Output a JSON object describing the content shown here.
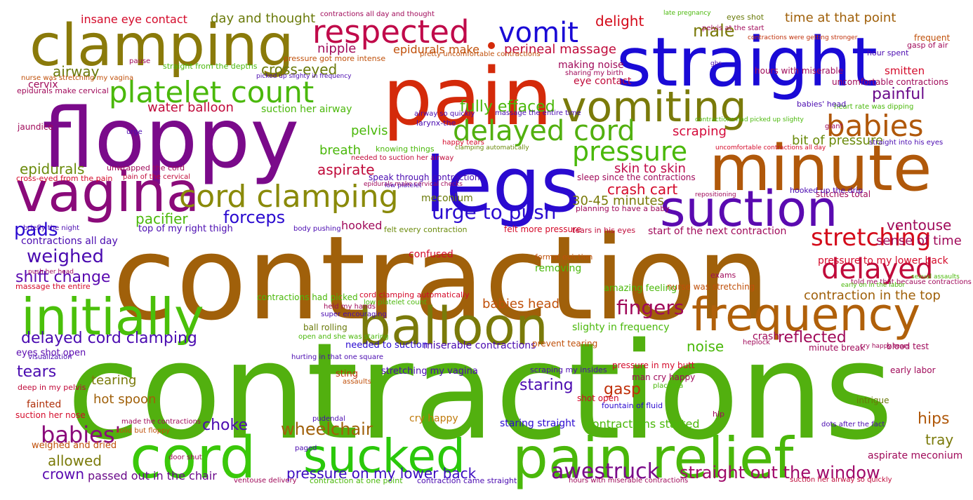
{
  "word_cloud": {
    "words": [
      {
        "text": "contractions",
        "color": "#52b00f"
      },
      {
        "text": "contraction",
        "color": "#a0600a"
      },
      {
        "text": "floppy",
        "color": "#7a0a8a"
      },
      {
        "text": "pain",
        "color": "#d42a0a"
      },
      {
        "text": "straight",
        "color": "#1a0ad6"
      },
      {
        "text": "clamping",
        "color": "#8a7a0a"
      },
      {
        "text": "legs",
        "color": "#2a0ad0"
      },
      {
        "text": "minute",
        "color": "#b0580a"
      },
      {
        "text": "pain relief",
        "color": "#4ab80a"
      },
      {
        "text": "cord",
        "color": "#3ac80a"
      },
      {
        "text": "balloon",
        "color": "#7a7a0a"
      },
      {
        "text": "initially",
        "color": "#4ac00a"
      },
      {
        "text": "vagina",
        "color": "#8a0a7a"
      },
      {
        "text": "suction",
        "color": "#5a0ab0"
      },
      {
        "text": "sucked",
        "color": "#2ac80a"
      },
      {
        "text": "frequency",
        "color": "#b0600a"
      },
      {
        "text": "vomiting",
        "color": "#7a7a0a"
      },
      {
        "text": "respected",
        "color": "#c00a4a"
      },
      {
        "text": "cord clamping",
        "color": "#8a8a0a"
      },
      {
        "text": "platelet count",
        "color": "#4ab80a"
      },
      {
        "text": "delayed cord",
        "color": "#52b00f"
      },
      {
        "text": "babies",
        "color": "#b0580a"
      },
      {
        "text": "pressure",
        "color": "#4ab80a"
      },
      {
        "text": "vomit",
        "color": "#1a0ad6"
      },
      {
        "text": "delayed",
        "color": "#c00a3a"
      },
      {
        "text": "stretching",
        "color": "#d40a1a"
      },
      {
        "text": "urge to push",
        "color": "#2a0ad0"
      },
      {
        "text": "fingers",
        "color": "#a00a5a"
      },
      {
        "text": "awestruck",
        "color": "#7a0a8a"
      },
      {
        "text": "straight out the window",
        "color": "#a00a6a"
      },
      {
        "text": "pressure on my lower back",
        "color": "#3a0ac0"
      },
      {
        "text": "delayed cord clamping",
        "color": "#4a0ab0"
      },
      {
        "text": "babies'",
        "color": "#8a0a7a"
      },
      {
        "text": "wheelchair",
        "color": "#a0600a"
      },
      {
        "text": "fully effaced",
        "color": "#4ab80a"
      },
      {
        "text": "forceps",
        "color": "#2a0ad0"
      },
      {
        "text": "weighed",
        "color": "#4a0ab0"
      },
      {
        "text": "shift change",
        "color": "#5a0ab0"
      },
      {
        "text": "pads",
        "color": "#2a0ad0"
      },
      {
        "text": "epidurals",
        "color": "#6a8a0a"
      },
      {
        "text": "pacifier",
        "color": "#4ab80a"
      },
      {
        "text": "male",
        "color": "#7a7a0a"
      },
      {
        "text": "nipple",
        "color": "#a00a5a"
      },
      {
        "text": "cross-eyed",
        "color": "#6a7a0a"
      },
      {
        "text": "airway",
        "color": "#6a7a0a"
      },
      {
        "text": "painful",
        "color": "#6a0a8a"
      },
      {
        "text": "water balloon",
        "color": "#c00a3a"
      },
      {
        "text": "delight",
        "color": "#d40a1a"
      },
      {
        "text": "scraping",
        "color": "#d40a3a"
      },
      {
        "text": "skin to skin",
        "color": "#c00a4a"
      },
      {
        "text": "crash cart",
        "color": "#d40a2a"
      },
      {
        "text": "30-45 minutes",
        "color": "#7a7a0a"
      },
      {
        "text": "ventouse",
        "color": "#a00a5a"
      },
      {
        "text": "sense of time",
        "color": "#a00a5a"
      },
      {
        "text": "aspirate",
        "color": "#c00a3a"
      },
      {
        "text": "breath",
        "color": "#4ab80a"
      },
      {
        "text": "pelvis",
        "color": "#4ab80a"
      },
      {
        "text": "hooked",
        "color": "#a00a5a"
      },
      {
        "text": "babies head",
        "color": "#c0500a"
      },
      {
        "text": "reflected",
        "color": "#a00a5a"
      },
      {
        "text": "noise",
        "color": "#4ab80a"
      },
      {
        "text": "tears",
        "color": "#4a0ab0"
      },
      {
        "text": "tearing",
        "color": "#7a7a0a"
      },
      {
        "text": "hot spoon",
        "color": "#a0600a"
      },
      {
        "text": "staring",
        "color": "#4a0ab0"
      },
      {
        "text": "gasp",
        "color": "#c0300a"
      },
      {
        "text": "choke",
        "color": "#4a0ab0"
      },
      {
        "text": "allowed",
        "color": "#7a7a0a"
      },
      {
        "text": "crown",
        "color": "#5a0ab0"
      },
      {
        "text": "hips",
        "color": "#b0580a"
      },
      {
        "text": "tray",
        "color": "#7a7a0a"
      },
      {
        "text": "contraction in the top",
        "color": "#a0600a"
      },
      {
        "text": "bit of pressure",
        "color": "#6a8a0a"
      },
      {
        "text": "suction her airway",
        "color": "#4ab80a"
      },
      {
        "text": "perineal massage",
        "color": "#c00a3a"
      },
      {
        "text": "epidurals make",
        "color": "#c0500a"
      },
      {
        "text": "time at that point",
        "color": "#a0600a"
      },
      {
        "text": "insane eye contact",
        "color": "#d40a2a"
      },
      {
        "text": "day and thought",
        "color": "#6a7a0a"
      },
      {
        "text": "making noise",
        "color": "#a00a5a"
      },
      {
        "text": "eye contact",
        "color": "#c00a3a"
      },
      {
        "text": "top of my right thigh",
        "color": "#4a0ab0"
      },
      {
        "text": "contractions all day",
        "color": "#4a0ab0"
      },
      {
        "text": "start of the next contraction",
        "color": "#a00a5a"
      },
      {
        "text": "pressure to my lower back",
        "color": "#d40a2a"
      },
      {
        "text": "passed out in the chair",
        "color": "#6a0a8a"
      },
      {
        "text": "contractions started",
        "color": "#4ab80a"
      },
      {
        "text": "staring straight",
        "color": "#2a0ad0"
      },
      {
        "text": "cry happy",
        "color": "#c07a0a"
      },
      {
        "text": "miserable contractions",
        "color": "#4a0ab0"
      },
      {
        "text": "needed to suction",
        "color": "#2a0ad0"
      },
      {
        "text": "slighty in frequency",
        "color": "#4ab80a"
      },
      {
        "text": "crash",
        "color": "#a00a5a"
      },
      {
        "text": "minute break",
        "color": "#a00a5a"
      },
      {
        "text": "blood test",
        "color": "#a00a5a"
      },
      {
        "text": "early labor",
        "color": "#a00a5a"
      },
      {
        "text": "aspirate meconium",
        "color": "#a00a5a"
      },
      {
        "text": "eyes shot open",
        "color": "#5a0ab0"
      },
      {
        "text": "fainted",
        "color": "#b0300a"
      },
      {
        "text": "suction her nose",
        "color": "#d40a2a"
      },
      {
        "text": "weighed and dried",
        "color": "#c0500a"
      },
      {
        "text": "cervix",
        "color": "#a00a5a"
      },
      {
        "text": "jaundice",
        "color": "#a00a5a"
      },
      {
        "text": "confused",
        "color": "#d40a2a"
      },
      {
        "text": "removing",
        "color": "#4ab80a"
      },
      {
        "text": "meconium",
        "color": "#6a7a0a"
      },
      {
        "text": "smitten",
        "color": "#d40a2a"
      },
      {
        "text": "frequent",
        "color": "#c0500a"
      },
      {
        "text": "sting",
        "color": "#c0300a"
      },
      {
        "text": "stretching my vagina",
        "color": "#4a0ab0"
      },
      {
        "text": "pressure in my butt",
        "color": "#d40a2a"
      },
      {
        "text": "intrigue",
        "color": "#6a7a0a"
      },
      {
        "text": "hip",
        "color": "#a00a5a"
      },
      {
        "text": "shot open",
        "color": "#d40a2a"
      },
      {
        "text": "sleep since the contractions",
        "color": "#a00a5a"
      },
      {
        "text": "planning to have a baby",
        "color": "#a00a5a"
      },
      {
        "text": "felt more pressure",
        "color": "#d40a2a"
      },
      {
        "text": "tears in his eyes",
        "color": "#c00a3a"
      },
      {
        "text": "hours with miserable",
        "color": "#a00a5a"
      },
      {
        "text": "uncomfortable contractions",
        "color": "#a00a5a"
      },
      {
        "text": "stitches total",
        "color": "#a00a5a"
      },
      {
        "text": "hooked up the drip",
        "color": "#4a0ab0"
      },
      {
        "text": "gasp of air",
        "color": "#a00a5a"
      },
      {
        "text": "hour spent",
        "color": "#4a0ab0"
      },
      {
        "text": "contractions all day and thought",
        "color": "#a00a5a"
      },
      {
        "text": "pressure got more intense",
        "color": "#c0500a"
      },
      {
        "text": "pretty uncomfortable contractions",
        "color": "#c0500a"
      },
      {
        "text": "straight from the depths",
        "color": "#4ab80a"
      },
      {
        "text": "nurse was stretching my vagina",
        "color": "#c0500a"
      },
      {
        "text": "epidurals make cervical",
        "color": "#a00a5a"
      },
      {
        "text": "cross-eyed from the pain",
        "color": "#d40a2a"
      },
      {
        "text": "unwrapped the cord",
        "color": "#a00a5a"
      },
      {
        "text": "pain of the cervical",
        "color": "#c00a3a"
      },
      {
        "text": "briefly the night",
        "color": "#4a0ab0"
      },
      {
        "text": "body pushing",
        "color": "#4a0ab0"
      },
      {
        "text": "felt every contraction",
        "color": "#6a8a0a"
      },
      {
        "text": "push her head",
        "color": "#a00a5a"
      },
      {
        "text": "massage the entire",
        "color": "#d40a2a"
      },
      {
        "text": "formal eviction",
        "color": "#c0500a"
      },
      {
        "text": "amazing feeling",
        "color": "#4ab80a"
      },
      {
        "text": "nurse was stretching",
        "color": "#c0500a"
      },
      {
        "text": "told me that because contractions",
        "color": "#a00a5a"
      },
      {
        "text": "early on in the labor",
        "color": "#4ab80a"
      },
      {
        "text": "sexual assaults",
        "color": "#4ab80a"
      },
      {
        "text": "exams",
        "color": "#a00a5a"
      },
      {
        "text": "contractions had picked",
        "color": "#4ab80a"
      },
      {
        "text": "cord clamping automatically",
        "color": "#d40a2a"
      },
      {
        "text": "held my hands",
        "color": "#a00a5a"
      },
      {
        "text": "low platelet count",
        "color": "#4ab80a"
      },
      {
        "text": "super encouraging",
        "color": "#4a0ab0"
      },
      {
        "text": "ball rolling",
        "color": "#6a7a0a"
      },
      {
        "text": "open and she was staring",
        "color": "#4ab80a"
      },
      {
        "text": "prevent tearing",
        "color": "#c0500a"
      },
      {
        "text": "heplock",
        "color": "#a00a5a"
      },
      {
        "text": "cry happy tears",
        "color": "#a00a5a"
      },
      {
        "text": "hurting in that one square",
        "color": "#4a0ab0"
      },
      {
        "text": "visualization",
        "color": "#4a0ab0"
      },
      {
        "text": "deep in my pelvis",
        "color": "#c00a3a"
      },
      {
        "text": "assaults",
        "color": "#c0500a"
      },
      {
        "text": "scraping my insides",
        "color": "#4a0ab0"
      },
      {
        "text": "man cry happy",
        "color": "#a00a5a"
      },
      {
        "text": "placenta",
        "color": "#4ab80a"
      },
      {
        "text": "fountain of fluid",
        "color": "#2a0ad0"
      },
      {
        "text": "dots after the fact",
        "color": "#4a0ab0"
      },
      {
        "text": "made the contractions",
        "color": "#a00a5a"
      },
      {
        "text": "solid but floppy",
        "color": "#c0500a"
      },
      {
        "text": "paged",
        "color": "#4a0ab0"
      },
      {
        "text": "door shut",
        "color": "#a00a5a"
      },
      {
        "text": "ventouse delivery",
        "color": "#a00a5a"
      },
      {
        "text": "contraction at one point",
        "color": "#4ab80a"
      },
      {
        "text": "contraction came straight",
        "color": "#4a0ab0"
      },
      {
        "text": "hours with miserable contractions",
        "color": "#a00a5a"
      },
      {
        "text": "suction her airway so quickly",
        "color": "#c00a3a"
      },
      {
        "text": "late pregnancy",
        "color": "#4ab80a"
      },
      {
        "text": "eyes shot",
        "color": "#6a7a0a"
      },
      {
        "text": "pelvis at the start",
        "color": "#a00a5a"
      },
      {
        "text": "contractions were getting stronger",
        "color": "#c0300a"
      },
      {
        "text": "gbs",
        "color": "#4a0ab0"
      },
      {
        "text": "picked up slighty in frequency",
        "color": "#4a0ab0"
      },
      {
        "text": "sharing my birth",
        "color": "#a00a5a"
      },
      {
        "text": "pause",
        "color": "#a00a5a"
      },
      {
        "text": "heart rate was dipping",
        "color": "#4ab80a"
      },
      {
        "text": "babies' head",
        "color": "#4a0ab0"
      },
      {
        "text": "massage the entire time",
        "color": "#4a0ab0"
      },
      {
        "text": "airway so quickly",
        "color": "#4a0ab0"
      },
      {
        "text": "contractions had picked up slighty",
        "color": "#4ab80a"
      },
      {
        "text": "larynx-the",
        "color": "#4a0ab0"
      },
      {
        "text": "urge",
        "color": "#4a0ab0"
      },
      {
        "text": "giant",
        "color": "#a00a5a"
      },
      {
        "text": "happy tears",
        "color": "#d40a2a"
      },
      {
        "text": "clamping automatically",
        "color": "#6a8a0a"
      },
      {
        "text": "knowing things",
        "color": "#4ab80a"
      },
      {
        "text": "needed to suction her airway",
        "color": "#c00a3a"
      },
      {
        "text": "straight into his eyes",
        "color": "#4a0ab0"
      },
      {
        "text": "uncomfortable contractions all day",
        "color": "#d40a2a"
      },
      {
        "text": "speak through contractions",
        "color": "#4a0ab0"
      },
      {
        "text": "epidurals make cervical checks",
        "color": "#a00a5a"
      },
      {
        "text": "low platelet",
        "color": "#4a0ab0"
      },
      {
        "text": "repositioning",
        "color": "#a00a5a"
      },
      {
        "text": "pudendal",
        "color": "#4a0ab0"
      },
      {
        "text": "dot",
        "color": "#d42a0a"
      }
    ]
  }
}
